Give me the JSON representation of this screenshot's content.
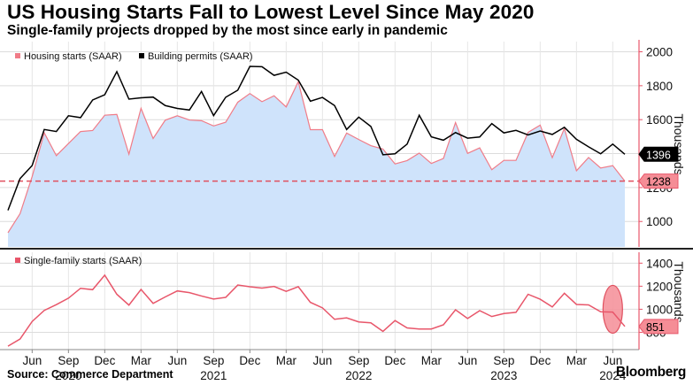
{
  "header": {
    "title": "US Housing Starts Fall to Lowest Level Since May 2020",
    "subtitle": "Single-family projects dropped by the most since early in pandemic"
  },
  "footer": {
    "source": "Source: Commerce Department",
    "brand": "Bloomberg"
  },
  "colors": {
    "starts_line": "#f07c88",
    "starts_fill": "#cfe3fb",
    "permits_line": "#000000",
    "single_family_line": "#e8566a",
    "reference_line": "#e0505f",
    "axis_line": "#e8566a",
    "highlight_fill": "#f58d96"
  },
  "chart_data": [
    {
      "type": "area",
      "title": "US Housing Starts Fall to Lowest Level Since May 2020",
      "ylabel": "Thousands",
      "ylim": [
        850,
        2060
      ],
      "yticks": [
        1000,
        1200,
        1400,
        1600,
        1800,
        2000
      ],
      "x_start": "2020-04",
      "series": [
        {
          "name": "Housing starts (SAAR)",
          "style": "area",
          "values": [
            934,
            1046,
            1265,
            1522,
            1388,
            1459,
            1530,
            1536,
            1626,
            1631,
            1397,
            1667,
            1489,
            1597,
            1623,
            1598,
            1594,
            1563,
            1585,
            1703,
            1754,
            1706,
            1741,
            1675,
            1824,
            1541,
            1541,
            1383,
            1521,
            1483,
            1447,
            1427,
            1339,
            1359,
            1403,
            1342,
            1371,
            1583,
            1401,
            1434,
            1305,
            1360,
            1360,
            1525,
            1568,
            1376,
            1548,
            1299,
            1377,
            1315,
            1329,
            1238
          ]
        },
        {
          "name": "Building permits (SAAR)",
          "style": "line",
          "values": [
            1066,
            1253,
            1330,
            1542,
            1530,
            1623,
            1612,
            1716,
            1747,
            1883,
            1721,
            1729,
            1733,
            1683,
            1666,
            1657,
            1766,
            1624,
            1732,
            1774,
            1914,
            1912,
            1861,
            1880,
            1833,
            1709,
            1731,
            1683,
            1542,
            1615,
            1560,
            1393,
            1399,
            1456,
            1626,
            1499,
            1479,
            1524,
            1491,
            1498,
            1577,
            1522,
            1537,
            1510,
            1533,
            1513,
            1555,
            1484,
            1440,
            1399,
            1456,
            1396
          ]
        }
      ],
      "reference_line": {
        "value": 1238,
        "style": "dashed"
      },
      "end_labels": [
        {
          "series": "Building permits (SAAR)",
          "label": "1396"
        },
        {
          "series": "Housing starts (SAAR)",
          "label": "1238"
        }
      ]
    },
    {
      "type": "line",
      "ylabel": "Thousands",
      "ylim": [
        650,
        1510
      ],
      "yticks": [
        800,
        1000,
        1200,
        1400
      ],
      "x_start": "2020-04",
      "series": [
        {
          "name": "Single-family starts (SAAR)",
          "style": "line",
          "values": [
            680,
            742,
            894,
            990,
            1040,
            1096,
            1182,
            1170,
            1296,
            1130,
            1036,
            1172,
            1051,
            1107,
            1159,
            1144,
            1115,
            1089,
            1103,
            1210,
            1195,
            1184,
            1198,
            1155,
            1196,
            1060,
            1012,
            913,
            925,
            890,
            882,
            808,
            902,
            838,
            829,
            829,
            865,
            995,
            920,
            988,
            937,
            963,
            973,
            1130,
            1087,
            1020,
            1139,
            1042,
            1038,
            978,
            975,
            851
          ]
        }
      ],
      "highlight": {
        "label": "851",
        "annotation": "ellipse around latest decline"
      }
    }
  ],
  "x_axis": {
    "month_labels": [
      "Jun",
      "Sep",
      "Dec",
      "Mar",
      "Jun",
      "Sep",
      "Dec",
      "Mar",
      "Jun",
      "Sep",
      "Dec",
      "Mar",
      "Jun",
      "Sep",
      "Dec",
      "Mar",
      "Jun"
    ],
    "year_labels": [
      "2020",
      "2021",
      "2022",
      "2023",
      "2024"
    ]
  }
}
